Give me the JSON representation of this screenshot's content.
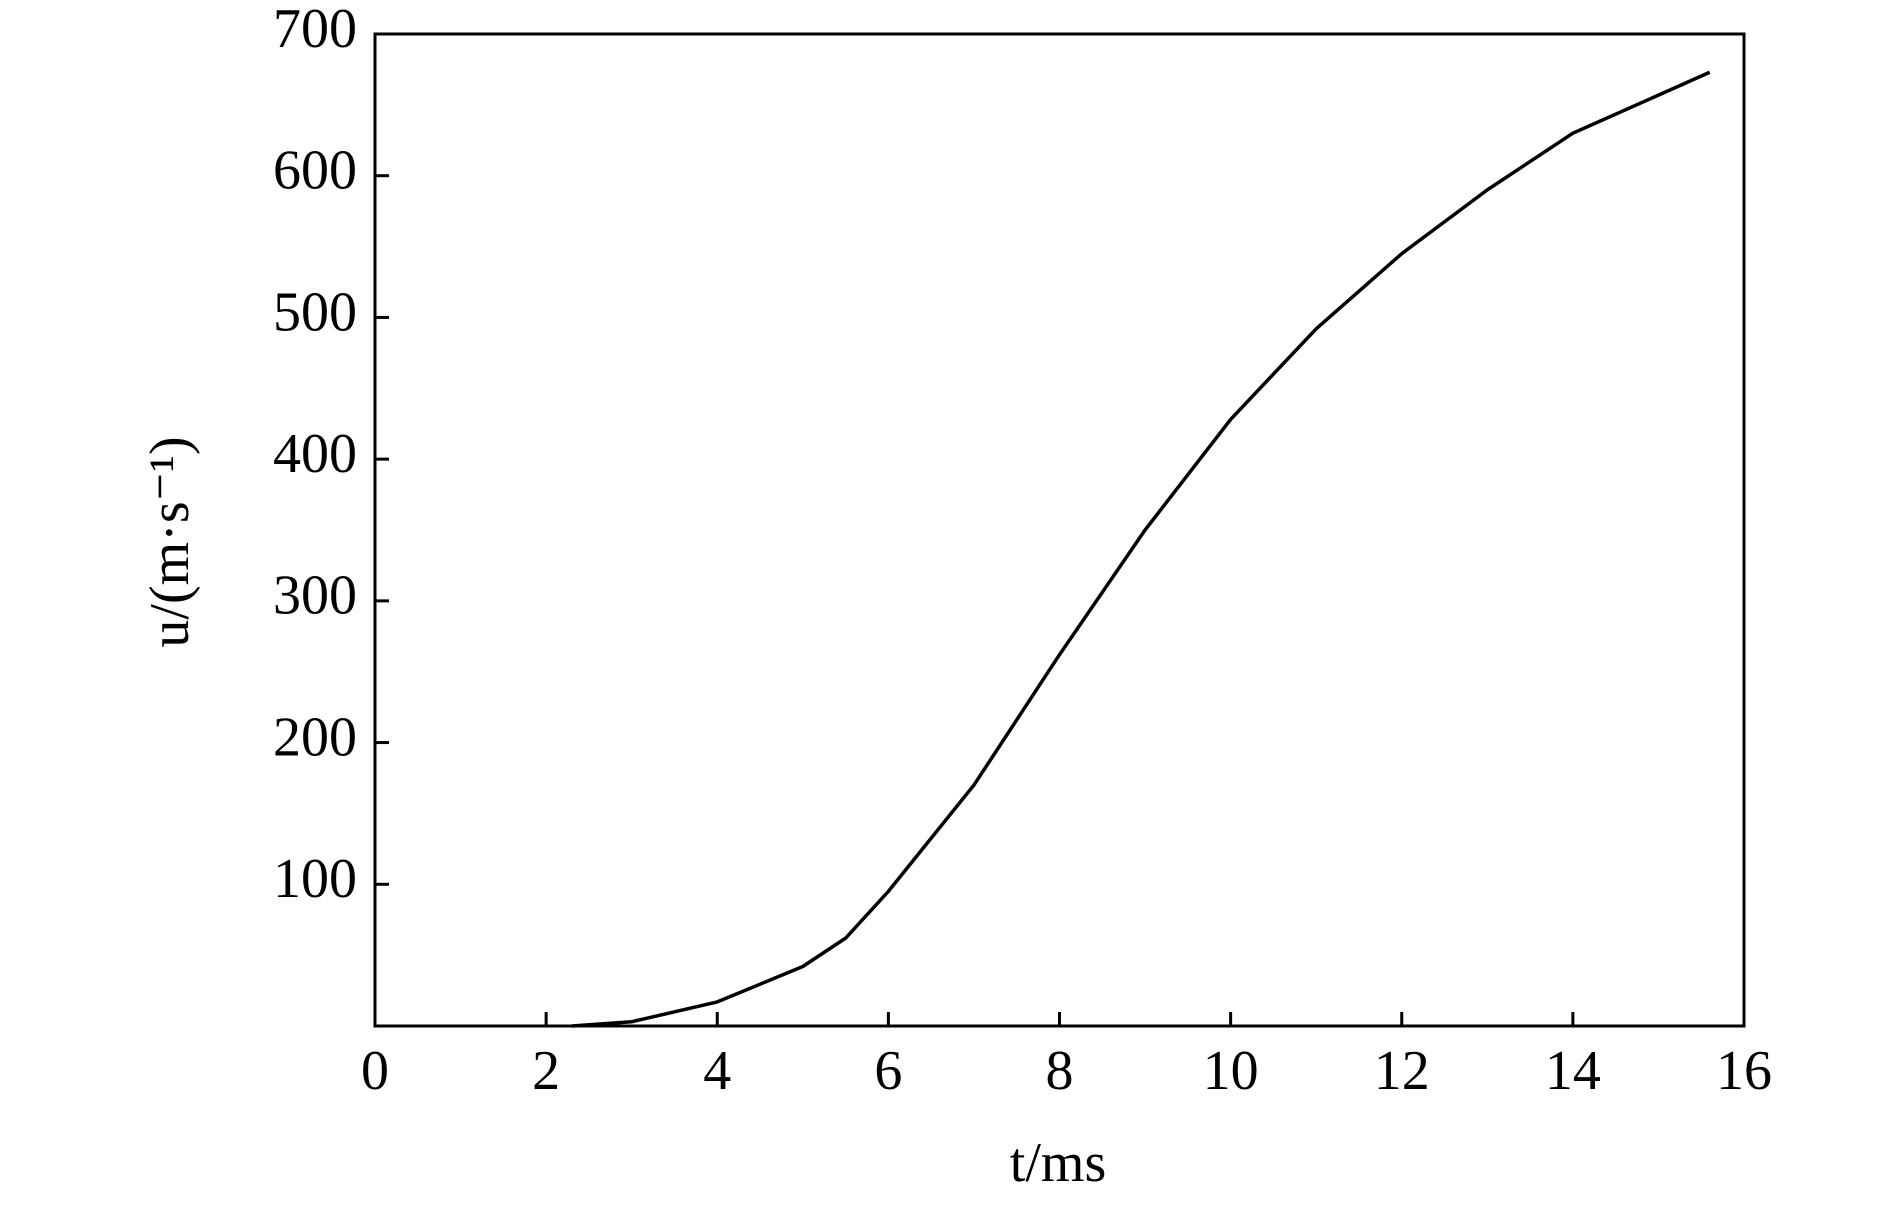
{
  "chart_data": {
    "type": "line",
    "xlabel": "t/ms",
    "ylabel": "u/(m·s⁻¹)",
    "x": [
      2.3,
      3,
      4,
      5,
      5.5,
      6,
      7,
      8,
      9,
      10,
      11,
      12,
      13,
      14,
      15.6
    ],
    "series": [
      {
        "color": "#000000",
        "values": [
          0,
          3,
          17,
          42,
          62,
          95,
          170,
          262,
          350,
          428,
          492,
          545,
          590,
          630,
          673
        ]
      }
    ],
    "xlim": [
      0,
      16
    ],
    "xticks": [
      0,
      2,
      4,
      6,
      8,
      10,
      12,
      14,
      16
    ],
    "ylim": [
      0,
      700
    ],
    "yticks": [
      100,
      200,
      300,
      400,
      500,
      600,
      700
    ],
    "grid": false
  }
}
